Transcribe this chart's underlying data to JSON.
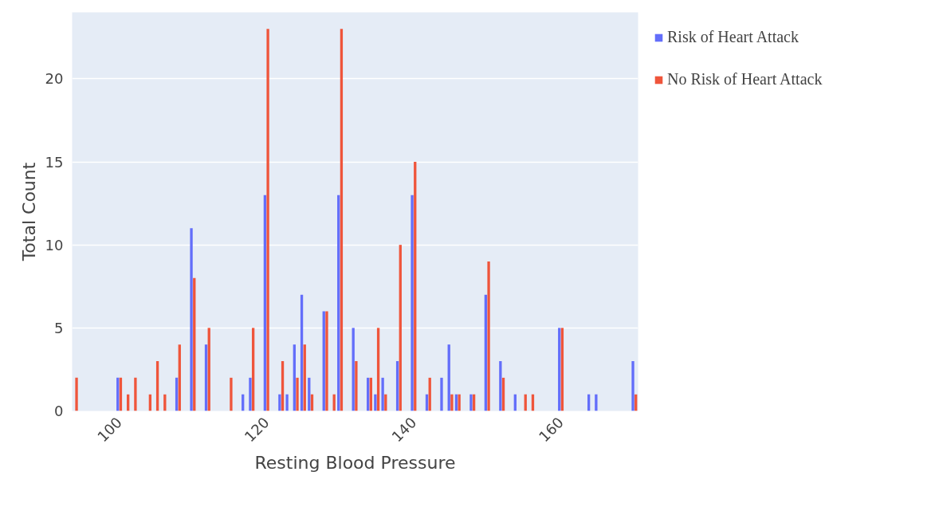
{
  "chart_data": {
    "type": "bar",
    "xlabel": "Resting Blood Pressure",
    "ylabel": "Total Count",
    "x": [
      94,
      100,
      101,
      102,
      104,
      105,
      106,
      108,
      110,
      112,
      115,
      117,
      118,
      120,
      122,
      123,
      124,
      125,
      126,
      128,
      129,
      130,
      132,
      134,
      135,
      136,
      138,
      140,
      142,
      144,
      145,
      146,
      148,
      150,
      152,
      154,
      155,
      156,
      160,
      164,
      165,
      170
    ],
    "series": [
      {
        "name": "Risk of Heart Attack",
        "color": "#636efa",
        "values": [
          null,
          2,
          null,
          null,
          null,
          null,
          null,
          2,
          11,
          4,
          null,
          1,
          2,
          13,
          1,
          1,
          4,
          7,
          2,
          6,
          null,
          13,
          5,
          2,
          1,
          2,
          3,
          13,
          1,
          2,
          4,
          1,
          1,
          7,
          3,
          1,
          null,
          null,
          5,
          1,
          1,
          3
        ]
      },
      {
        "name": "No Risk of Heart Attack",
        "color": "#ef553b",
        "values": [
          2,
          2,
          1,
          2,
          1,
          3,
          1,
          4,
          8,
          5,
          2,
          null,
          5,
          23,
          3,
          null,
          2,
          4,
          1,
          6,
          1,
          23,
          3,
          2,
          5,
          1,
          10,
          15,
          2,
          null,
          1,
          1,
          1,
          9,
          2,
          null,
          1,
          1,
          5,
          null,
          null,
          1
        ]
      }
    ],
    "xlim": [
      93.6,
      170.5
    ],
    "xticks": [
      100,
      120,
      140,
      160
    ],
    "ylim": [
      0,
      24
    ],
    "yticks": [
      0,
      5,
      10,
      15,
      20
    ],
    "grid": "y",
    "legend": "top right"
  }
}
